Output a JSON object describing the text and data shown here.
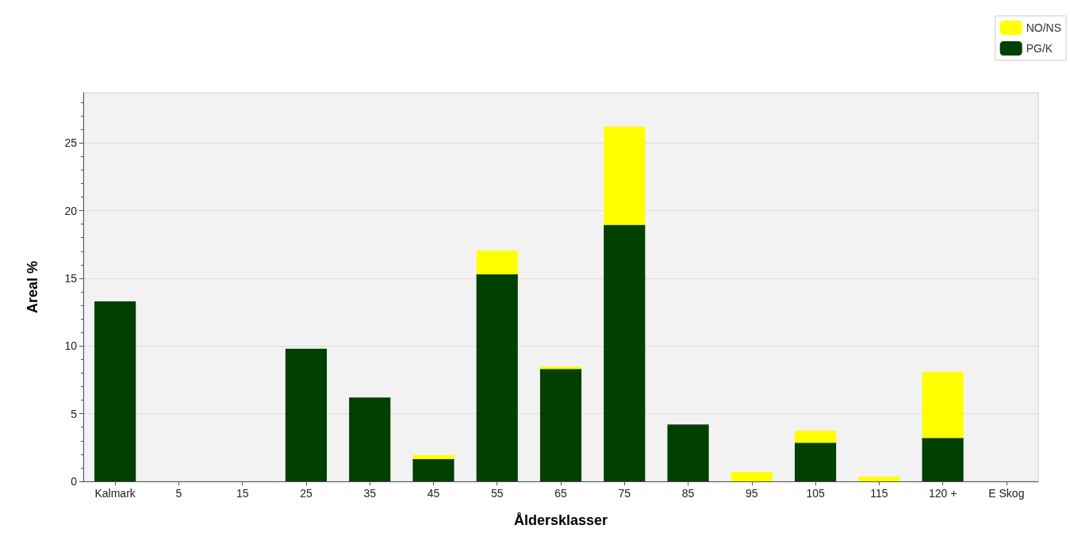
{
  "chart_data": {
    "type": "bar",
    "stacked": true,
    "xlabel": "Åldersklasser",
    "ylabel": "Areal %",
    "categories": [
      "Kalmark",
      "5",
      "15",
      "25",
      "35",
      "45",
      "55",
      "65",
      "75",
      "85",
      "95",
      "105",
      "115",
      "120 +",
      "E Skog"
    ],
    "series": [
      {
        "name": "PG/K",
        "color": "#004000",
        "values": [
          13.3,
          0,
          0,
          9.8,
          6.2,
          1.65,
          15.3,
          8.3,
          18.95,
          4.2,
          0,
          2.85,
          0,
          3.2,
          0
        ]
      },
      {
        "name": "NO/NS",
        "color": "#ffff00",
        "values": [
          0,
          0,
          0,
          0,
          0,
          0.3,
          1.75,
          0.2,
          7.25,
          0,
          0.7,
          0.9,
          0.35,
          4.9,
          0
        ]
      }
    ],
    "ylim": [
      0,
      28.7
    ],
    "yticks": [
      0,
      5,
      10,
      15,
      20,
      25
    ],
    "grid": "y",
    "legend": "top right"
  }
}
